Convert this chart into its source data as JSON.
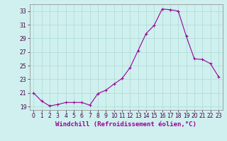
{
  "x": [
    0,
    1,
    2,
    3,
    4,
    5,
    6,
    7,
    8,
    9,
    10,
    11,
    12,
    13,
    14,
    15,
    16,
    17,
    18,
    19,
    20,
    21,
    22,
    23
  ],
  "y": [
    21.0,
    19.8,
    19.1,
    19.3,
    19.6,
    19.6,
    19.6,
    19.2,
    20.9,
    21.4,
    22.3,
    23.1,
    24.7,
    27.2,
    29.7,
    30.9,
    33.3,
    33.2,
    33.0,
    29.3,
    26.0,
    25.9,
    25.3,
    23.4
  ],
  "line_color": "#990099",
  "marker": "+",
  "marker_size": 3,
  "bg_color": "#cff0ee",
  "grid_color": "#b0ddd8",
  "xlabel": "Windchill (Refroidissement éolien,°C)",
  "xlabel_color": "#990099",
  "ylim": [
    18.5,
    34.0
  ],
  "xlim": [
    -0.5,
    23.5
  ],
  "yticks": [
    19,
    21,
    23,
    25,
    27,
    29,
    31,
    33
  ],
  "xticks": [
    0,
    1,
    2,
    3,
    4,
    5,
    6,
    7,
    8,
    9,
    10,
    11,
    12,
    13,
    14,
    15,
    16,
    17,
    18,
    19,
    20,
    21,
    22,
    23
  ],
  "tick_fontsize": 5.5,
  "xlabel_fontsize": 6.5,
  "line_width": 0.8,
  "marker_edge_width": 0.8
}
